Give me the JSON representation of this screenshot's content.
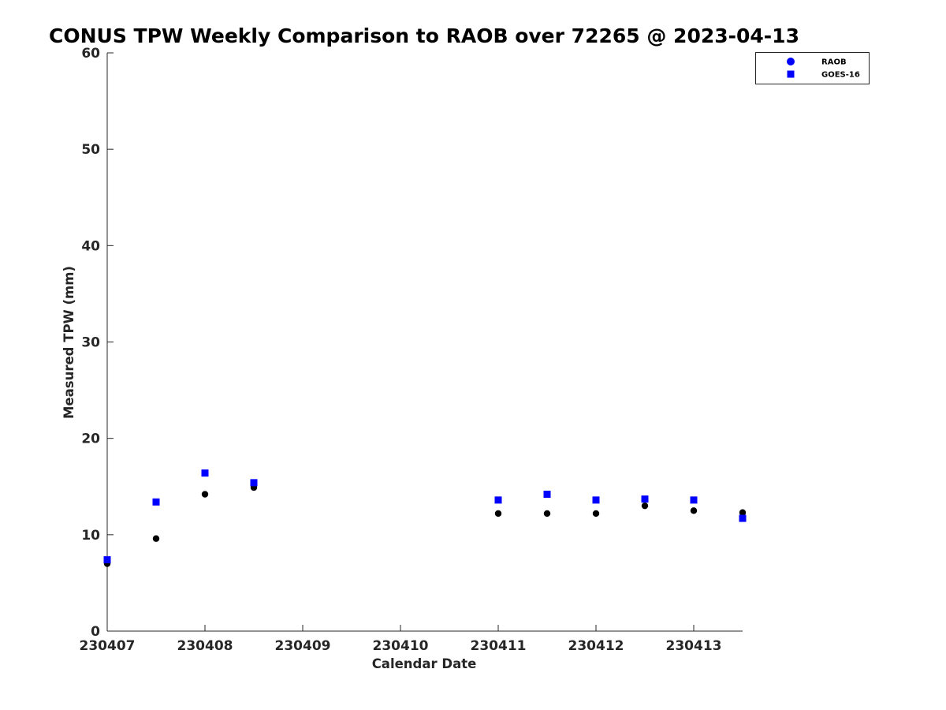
{
  "chart_data": {
    "type": "scatter",
    "title": "CONUS TPW Weekly Comparison to RAOB over 72265 @ 2023-04-13",
    "xlabel": "Calendar Date",
    "ylabel": "Measured TPW (mm)",
    "xlim": [
      0,
      6.5
    ],
    "ylim": [
      0,
      60
    ],
    "xticks": [
      0,
      1,
      2,
      3,
      4,
      5,
      6
    ],
    "xtick_labels": [
      "230407",
      "230408",
      "230409",
      "230410",
      "230411",
      "230412",
      "230413"
    ],
    "yticks": [
      0,
      10,
      20,
      30,
      40,
      50,
      60
    ],
    "ytick_labels": [
      "0",
      "10",
      "20",
      "30",
      "40",
      "50",
      "60"
    ],
    "grid": false,
    "legend_position": "top-right",
    "series": [
      {
        "name": "RAOB",
        "marker": "circle",
        "color": "#000000",
        "legend_color": "#0000ff",
        "points": [
          {
            "x": 0.0,
            "y": 7.0
          },
          {
            "x": 0.5,
            "y": 9.6
          },
          {
            "x": 1.0,
            "y": 14.2
          },
          {
            "x": 1.5,
            "y": 14.9
          },
          {
            "x": 4.0,
            "y": 12.2
          },
          {
            "x": 4.5,
            "y": 12.2
          },
          {
            "x": 5.0,
            "y": 12.2
          },
          {
            "x": 5.5,
            "y": 13.0
          },
          {
            "x": 6.0,
            "y": 12.5
          },
          {
            "x": 6.5,
            "y": 12.3
          }
        ]
      },
      {
        "name": "GOES-16",
        "marker": "square",
        "color": "#0000ff",
        "legend_color": "#0000ff",
        "points": [
          {
            "x": 0.0,
            "y": 7.4
          },
          {
            "x": 0.5,
            "y": 13.4
          },
          {
            "x": 1.0,
            "y": 16.4
          },
          {
            "x": 1.5,
            "y": 15.4
          },
          {
            "x": 4.0,
            "y": 13.6
          },
          {
            "x": 4.5,
            "y": 14.2
          },
          {
            "x": 5.0,
            "y": 13.6
          },
          {
            "x": 5.5,
            "y": 13.7
          },
          {
            "x": 6.0,
            "y": 13.6
          },
          {
            "x": 6.5,
            "y": 11.7
          }
        ]
      }
    ]
  }
}
